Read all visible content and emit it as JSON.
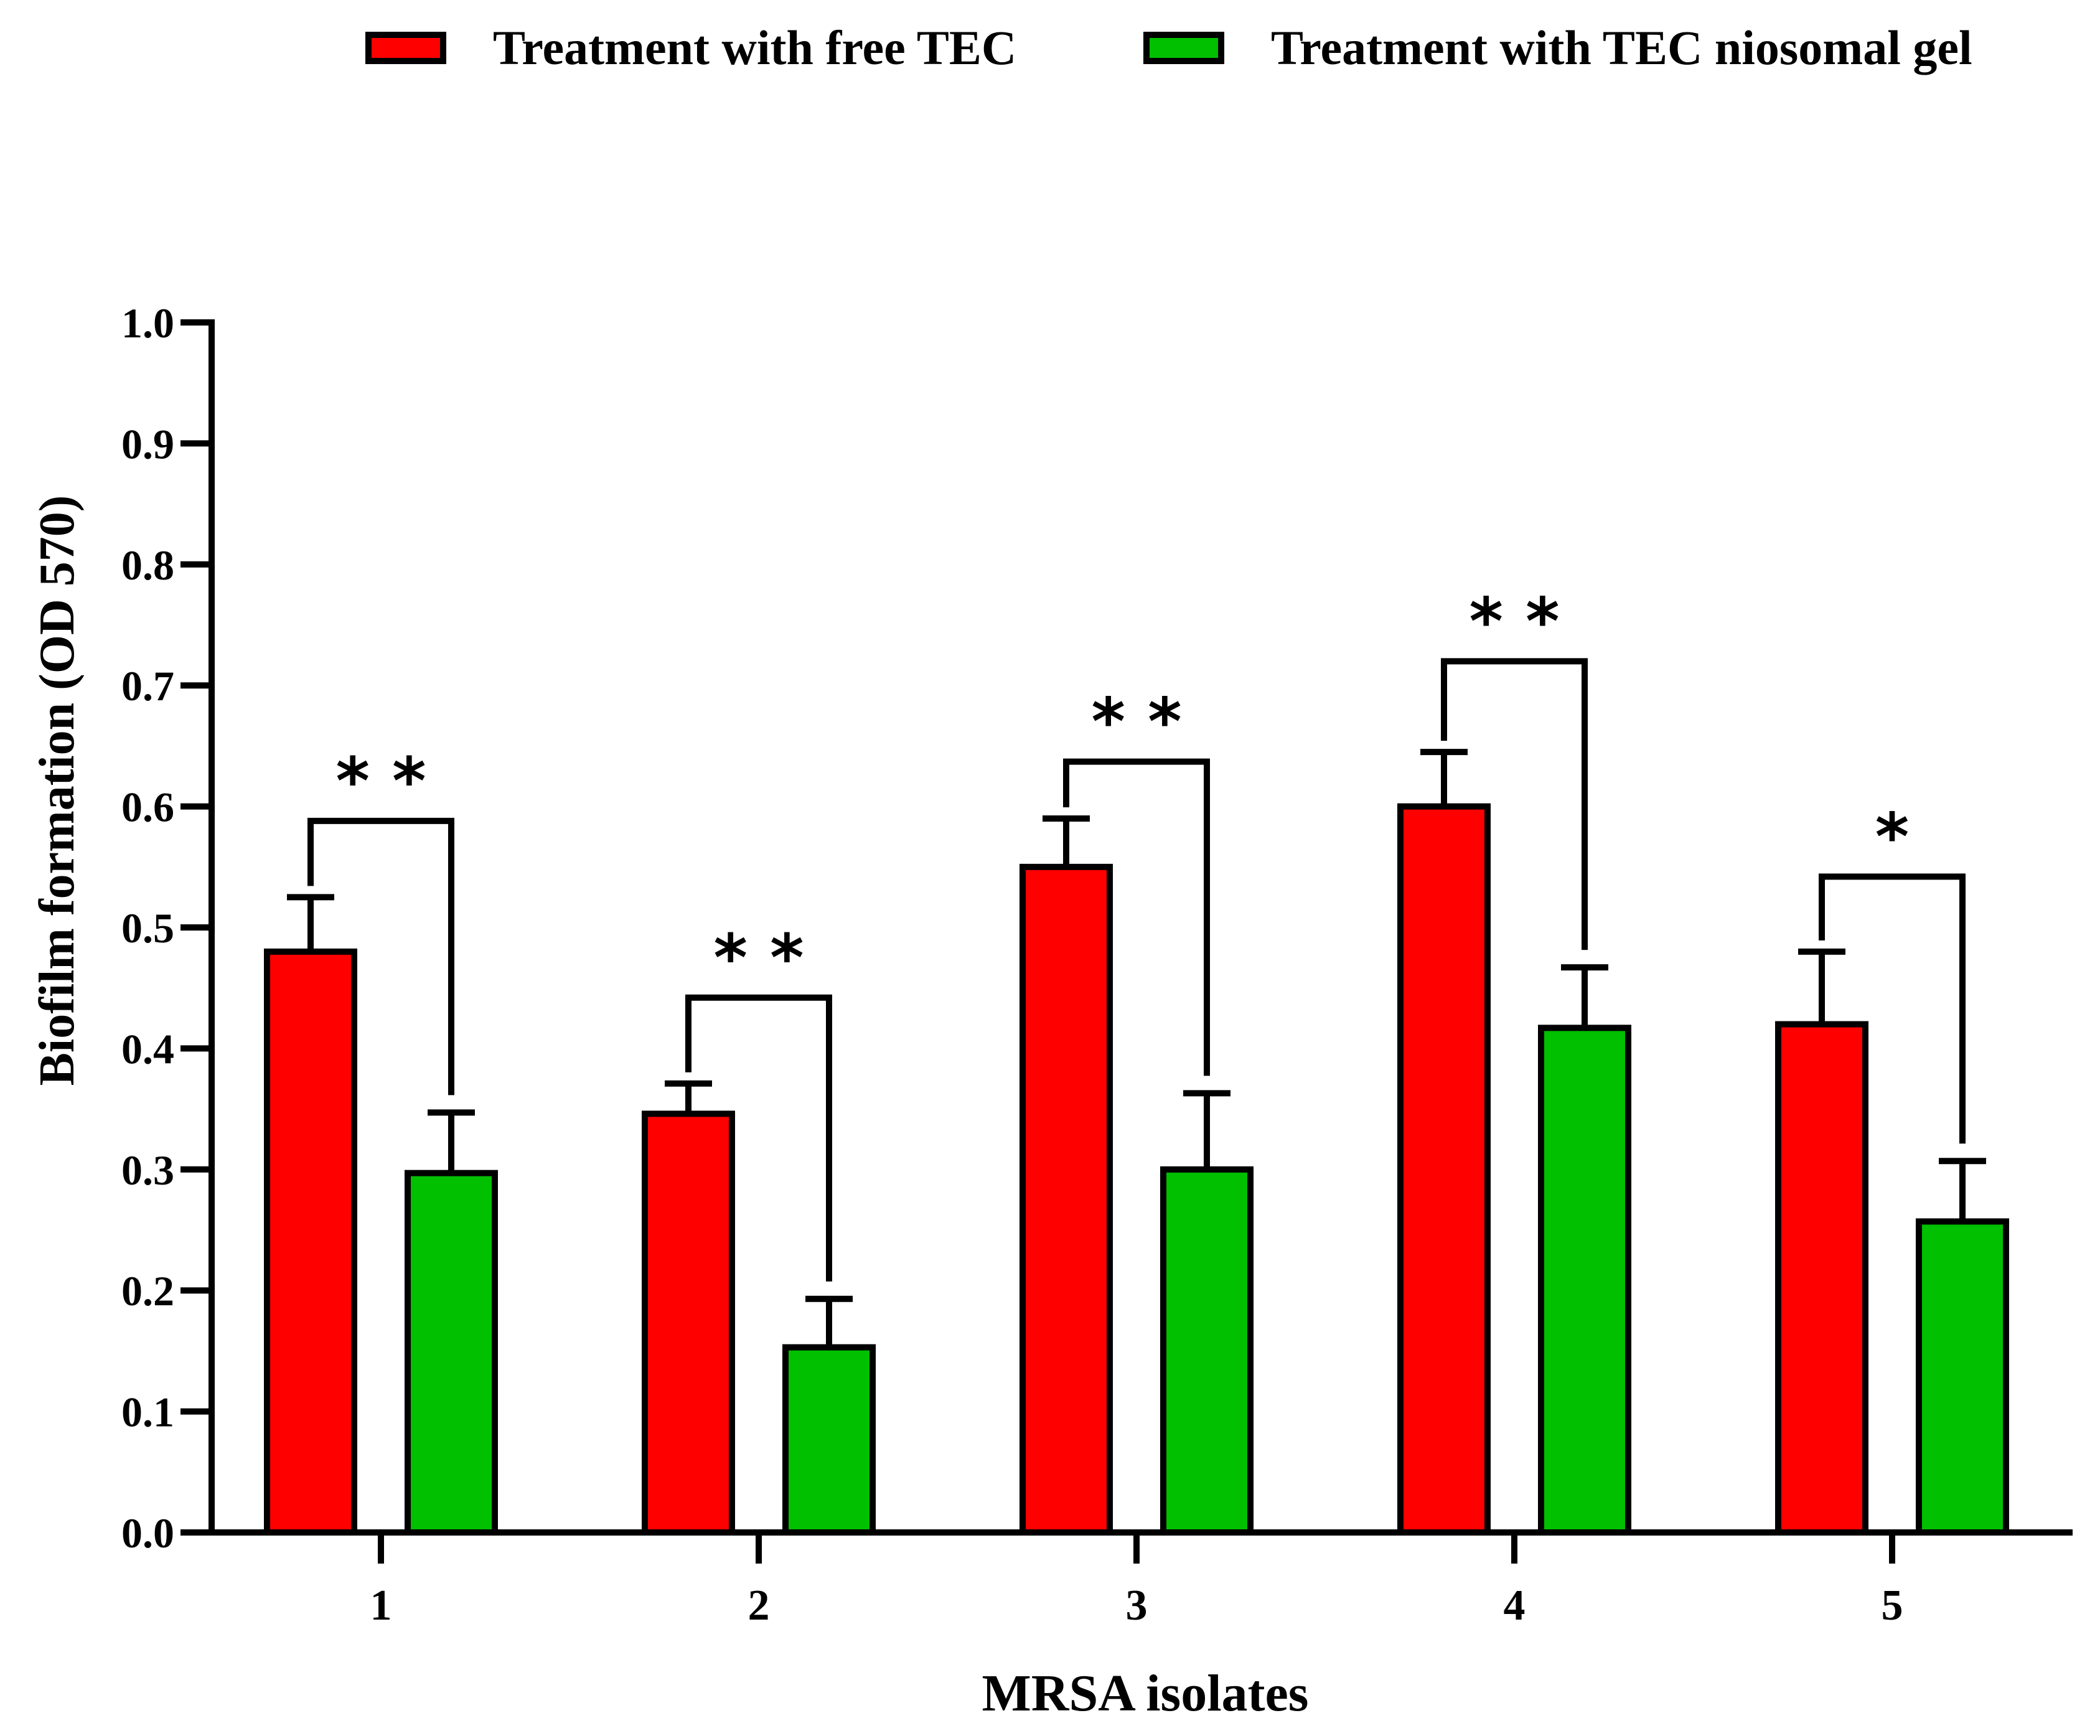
{
  "chart_data": {
    "type": "bar",
    "title": "",
    "xlabel": "MRSA isolates",
    "ylabel": "Biofilm formation (OD 570)",
    "ylim": [
      0,
      1.0
    ],
    "yticks": [
      "0.0",
      "0.1",
      "0.2",
      "0.3",
      "0.4",
      "0.5",
      "0.6",
      "0.7",
      "0.8",
      "0.9",
      "1.0"
    ],
    "categories": [
      "1",
      "2",
      "3",
      "4",
      "5"
    ],
    "legend_position": "top",
    "series": [
      {
        "name": "Treatment with free TEC",
        "color": "#ff0000",
        "values": [
          0.48,
          0.346,
          0.55,
          0.6,
          0.42
        ],
        "errors": [
          0.045,
          0.025,
          0.04,
          0.045,
          0.06
        ]
      },
      {
        "name": "Treatment with TEC niosomal gel",
        "color": "#00c000",
        "values": [
          0.297,
          0.153,
          0.3,
          0.417,
          0.257
        ],
        "errors": [
          0.05,
          0.04,
          0.063,
          0.05,
          0.05
        ]
      }
    ],
    "significance": [
      {
        "category": "1",
        "label": "* *",
        "bracket_y": 0.588
      },
      {
        "category": "2",
        "label": "* *",
        "bracket_y": 0.442
      },
      {
        "category": "3",
        "label": "* *",
        "bracket_y": 0.637
      },
      {
        "category": "4",
        "label": "* *",
        "bracket_y": 0.72
      },
      {
        "category": "5",
        "label": "*",
        "bracket_y": 0.542
      }
    ]
  }
}
